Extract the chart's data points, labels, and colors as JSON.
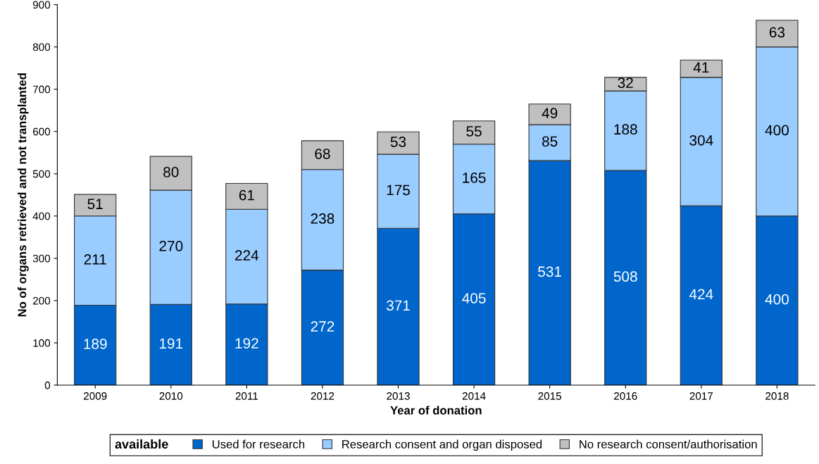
{
  "chart_data": {
    "type": "bar",
    "stacked": true,
    "xlabel": "Year of donation",
    "ylabel": "No of organs retrieved and not transplanted",
    "legend_title": "available",
    "categories": [
      "2009",
      "2010",
      "2011",
      "2012",
      "2013",
      "2014",
      "2015",
      "2016",
      "2017",
      "2018"
    ],
    "series": [
      {
        "name": "Used for research",
        "color": "#0066cc",
        "values": [
          189,
          191,
          192,
          272,
          371,
          405,
          531,
          508,
          424,
          400
        ]
      },
      {
        "name": "Research consent and organ disposed",
        "color": "#99ccff",
        "values": [
          211,
          270,
          224,
          238,
          175,
          165,
          85,
          188,
          304,
          400
        ]
      },
      {
        "name": "No research consent/authorisation",
        "color": "#c0c0c0",
        "values": [
          51,
          80,
          61,
          68,
          53,
          55,
          49,
          32,
          41,
          63
        ]
      }
    ],
    "ylim": [
      0,
      900
    ],
    "yticks": [
      0,
      100,
      200,
      300,
      400,
      500,
      600,
      700,
      800,
      900
    ],
    "data_labels": true,
    "grid": false,
    "legend": "bottom"
  }
}
